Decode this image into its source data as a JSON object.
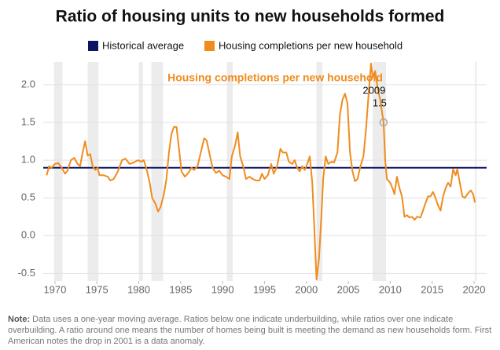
{
  "chart_data": {
    "type": "line",
    "title": "Ratio of housing units to new households formed",
    "series_label": "Housing completions per new household",
    "reference_line": {
      "name": "Historical average",
      "color": "#0d1464",
      "value": 0.9
    },
    "x": [
      1969.0,
      1969.3,
      1969.6,
      1970.0,
      1970.4,
      1970.8,
      1971.2,
      1971.5,
      1971.9,
      1972.3,
      1972.7,
      1973.0,
      1973.3,
      1973.6,
      1973.9,
      1974.2,
      1974.5,
      1974.8,
      1975.1,
      1975.3,
      1975.8,
      1976.3,
      1976.6,
      1977.0,
      1977.5,
      1978.0,
      1978.4,
      1978.9,
      1979.4,
      1979.9,
      1980.3,
      1980.6,
      1981.0,
      1981.3,
      1981.6,
      1982.0,
      1982.3,
      1982.6,
      1983.0,
      1983.3,
      1983.6,
      1983.9,
      1984.2,
      1984.5,
      1984.8,
      1985.1,
      1985.5,
      1985.9,
      1986.3,
      1986.6,
      1987.0,
      1987.4,
      1987.8,
      1988.1,
      1988.5,
      1988.8,
      1989.2,
      1989.6,
      1990.0,
      1990.4,
      1990.8,
      1991.1,
      1991.5,
      1991.8,
      1992.1,
      1992.5,
      1992.8,
      1993.2,
      1993.6,
      1994.0,
      1994.4,
      1994.7,
      1995.0,
      1995.4,
      1995.8,
      1996.1,
      1996.5,
      1996.9,
      1997.2,
      1997.6,
      1997.9,
      1998.3,
      1998.6,
      1998.9,
      1999.2,
      1999.5,
      1999.8,
      2000.1,
      2000.4,
      2000.7,
      2000.9,
      2001.2,
      2001.5,
      2001.8,
      2002.0,
      2002.3,
      2002.6,
      2003.0,
      2003.3,
      2003.7,
      2004.0,
      2004.3,
      2004.6,
      2004.9,
      2005.2,
      2005.5,
      2005.8,
      2006.1,
      2006.4,
      2006.8,
      2007.1,
      2007.4,
      2007.7,
      2007.9,
      2008.2,
      2008.5,
      2008.8,
      2009.2,
      2009.4,
      2009.6,
      2010.0,
      2010.3,
      2010.5,
      2010.8,
      2011.1,
      2011.4,
      2011.7,
      2012.0,
      2012.3,
      2012.6,
      2012.9,
      2013.2,
      2013.6,
      2013.9,
      2014.2,
      2014.5,
      2014.8,
      2015.1,
      2015.4,
      2015.7,
      2016.0,
      2016.3,
      2016.6,
      2016.9,
      2017.2,
      2017.5,
      2017.8,
      2018.0,
      2018.3,
      2018.6,
      2018.9,
      2019.2,
      2019.6,
      2019.9,
      2020.1
    ],
    "series": [
      {
        "name": "Housing completions per new household",
        "color": "#f08c1e",
        "values": [
          0.8,
          0.92,
          0.9,
          0.95,
          0.96,
          0.9,
          0.82,
          0.86,
          1.0,
          1.03,
          0.95,
          0.92,
          1.1,
          1.25,
          1.06,
          1.08,
          0.92,
          0.87,
          0.9,
          0.8,
          0.8,
          0.78,
          0.73,
          0.75,
          0.85,
          1.0,
          1.02,
          0.95,
          0.97,
          1.0,
          0.98,
          1.0,
          0.85,
          0.7,
          0.5,
          0.42,
          0.32,
          0.38,
          0.55,
          0.75,
          1.1,
          1.35,
          1.44,
          1.44,
          1.15,
          0.85,
          0.78,
          0.83,
          0.9,
          0.87,
          0.92,
          1.1,
          1.29,
          1.26,
          1.05,
          0.9,
          0.83,
          0.86,
          0.8,
          0.78,
          0.75,
          1.05,
          1.2,
          1.37,
          1.05,
          0.9,
          0.75,
          0.78,
          0.75,
          0.73,
          0.73,
          0.82,
          0.75,
          0.8,
          0.95,
          0.82,
          0.92,
          1.15,
          1.1,
          1.1,
          0.98,
          0.95,
          1.0,
          0.9,
          0.85,
          0.92,
          0.87,
          0.95,
          1.05,
          0.7,
          0.2,
          -0.58,
          -0.3,
          0.3,
          0.75,
          1.05,
          0.95,
          0.98,
          0.97,
          1.1,
          1.6,
          1.8,
          1.88,
          1.75,
          1.1,
          0.85,
          0.72,
          0.75,
          0.9,
          1.05,
          1.4,
          1.85,
          2.28,
          2.1,
          2.18,
          1.95,
          1.8,
          1.5,
          1.0,
          0.75,
          0.7,
          0.62,
          0.55,
          0.78,
          0.63,
          0.52,
          0.25,
          0.27,
          0.24,
          0.25,
          0.21,
          0.25,
          0.24,
          0.33,
          0.43,
          0.52,
          0.52,
          0.58,
          0.5,
          0.4,
          0.33,
          0.52,
          0.63,
          0.7,
          0.65,
          0.88,
          0.8,
          0.88,
          0.7,
          0.52,
          0.5,
          0.55,
          0.6,
          0.55,
          0.44
        ]
      }
    ],
    "highlight": {
      "label": "2009",
      "x": 2009.2,
      "y": 1.5
    },
    "shaded_periods": [
      [
        1969.9,
        1970.9
      ],
      [
        1973.9,
        1975.2
      ],
      [
        1980.0,
        1980.5
      ],
      [
        1981.5,
        1982.9
      ],
      [
        1990.5,
        1991.2
      ],
      [
        2001.2,
        2001.9
      ],
      [
        2007.9,
        2009.5
      ],
      [
        2020.1,
        2020.3
      ]
    ],
    "xlim": [
      1968.6,
      2021.5
    ],
    "xticks": [
      1970,
      1975,
      1980,
      1985,
      1990,
      1995,
      2000,
      2005,
      2010,
      2015,
      2020
    ],
    "ylim": [
      -0.6,
      2.3
    ],
    "yticks": [
      -0.5,
      {
        "value": 0,
        "label": "0.0"
      },
      0.5,
      {
        "value": 1,
        "label": "1.0"
      },
      1.5,
      {
        "value": 2,
        "label": "2.0"
      }
    ],
    "grid": true,
    "note_label": "Note:",
    "note": "Data uses a one-year moving average. Ratios below one indicate underbuilding, while ratios over one indicate overbuilding. A ratio around one means the number of homes being built is meeting the demand as new households form. First American notes the drop in 2001 is a data anomaly."
  }
}
